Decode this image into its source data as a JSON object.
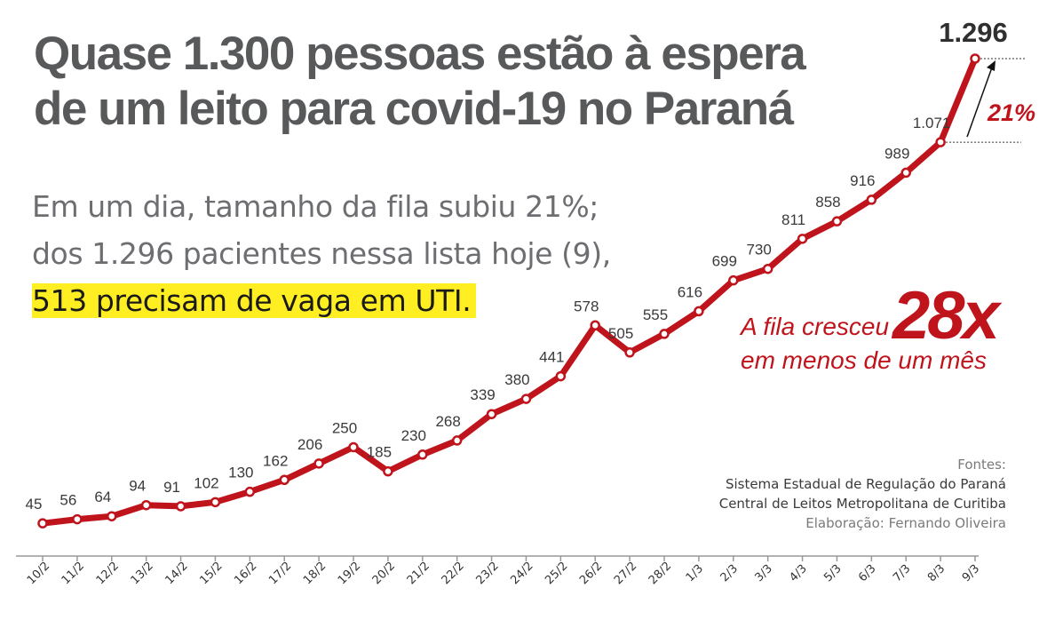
{
  "header": {
    "title_line1": "Quase 1.300 pessoas estão à espera",
    "title_line2": "de um leito para covid-19 no Paraná"
  },
  "subtitle": {
    "line1": "Em um dia, tamanho da fila subiu 21%;",
    "line2": "dos 1.296 pacientes nessa lista hoje (9),",
    "line3": "513 precisam de vaga em UTI."
  },
  "callout": {
    "text1": "A fila cresceu",
    "big": "28x",
    "text2": "em menos de um mês"
  },
  "growth_label": "21%",
  "sources": {
    "heading": "Fontes:",
    "source1": "Sistema Estadual de Regulação do Paraná",
    "source2": "Central de Leitos Metropolitana de Curitiba",
    "credit": "Elaboração: Fernando Oliveira"
  },
  "colors": {
    "line": "#c0141c",
    "title": "#58595b",
    "highlight": "#ffee22",
    "axis": "#999999"
  },
  "chart_data": {
    "type": "line",
    "categories": [
      "10/2",
      "11/2",
      "12/2",
      "13/2",
      "14/2",
      "15/2",
      "16/2",
      "17/2",
      "18/2",
      "19/2",
      "20/2",
      "21/2",
      "22/2",
      "23/2",
      "24/2",
      "25/2",
      "26/2",
      "27/2",
      "28/2",
      "1/3",
      "2/3",
      "3/3",
      "4/3",
      "5/3",
      "6/3",
      "7/3",
      "8/3",
      "9/3"
    ],
    "values": [
      45,
      56,
      64,
      94,
      91,
      102,
      130,
      162,
      206,
      250,
      185,
      230,
      268,
      339,
      380,
      441,
      578,
      505,
      555,
      616,
      699,
      730,
      811,
      858,
      916,
      989,
      1071,
      1296
    ],
    "value_labels": [
      "45",
      "56",
      "64",
      "94",
      "91",
      "102",
      "130",
      "162",
      "206",
      "250",
      "185",
      "230",
      "268",
      "339",
      "380",
      "441",
      "578",
      "505",
      "555",
      "616",
      "699",
      "730",
      "811",
      "858",
      "916",
      "989",
      "1.071",
      "1.296"
    ],
    "ylim": [
      0,
      1296
    ],
    "grid": false,
    "legend": "none"
  }
}
